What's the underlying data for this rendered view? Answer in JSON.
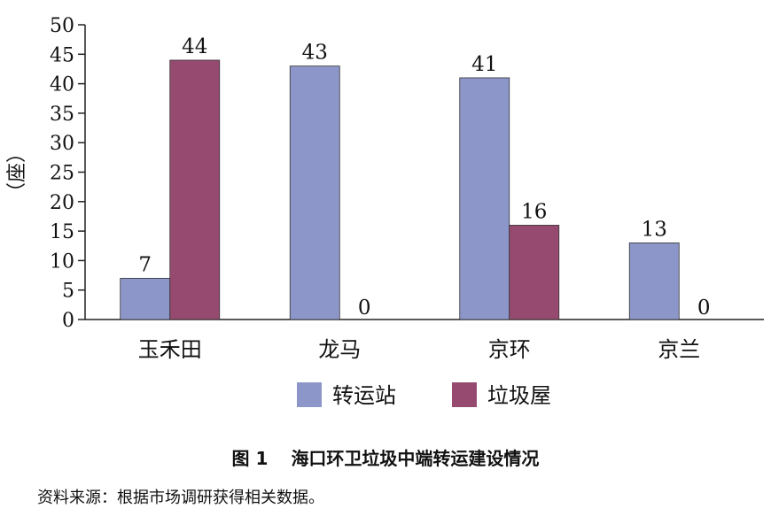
{
  "chart_data": {
    "type": "bar",
    "categories": [
      "玉禾田",
      "龙马",
      "京环",
      "京兰"
    ],
    "series": [
      {
        "name": "转运站",
        "values": [
          7,
          43,
          41,
          13
        ],
        "color": "#8d96c8"
      },
      {
        "name": "垃圾屋",
        "values": [
          44,
          0,
          16,
          0
        ],
        "color": "#974a6f"
      }
    ],
    "ylabel": "（座）",
    "ylim": [
      0,
      50
    ],
    "yticks": [
      0,
      5,
      10,
      15,
      20,
      25,
      30,
      35,
      40,
      45,
      50
    ],
    "legend_position": "bottom",
    "grid": false
  },
  "caption": {
    "number": "图 1",
    "title": "海口环卫垃圾中端转运建设情况"
  },
  "source": "资料来源：根据市场调研获得相关数据。"
}
